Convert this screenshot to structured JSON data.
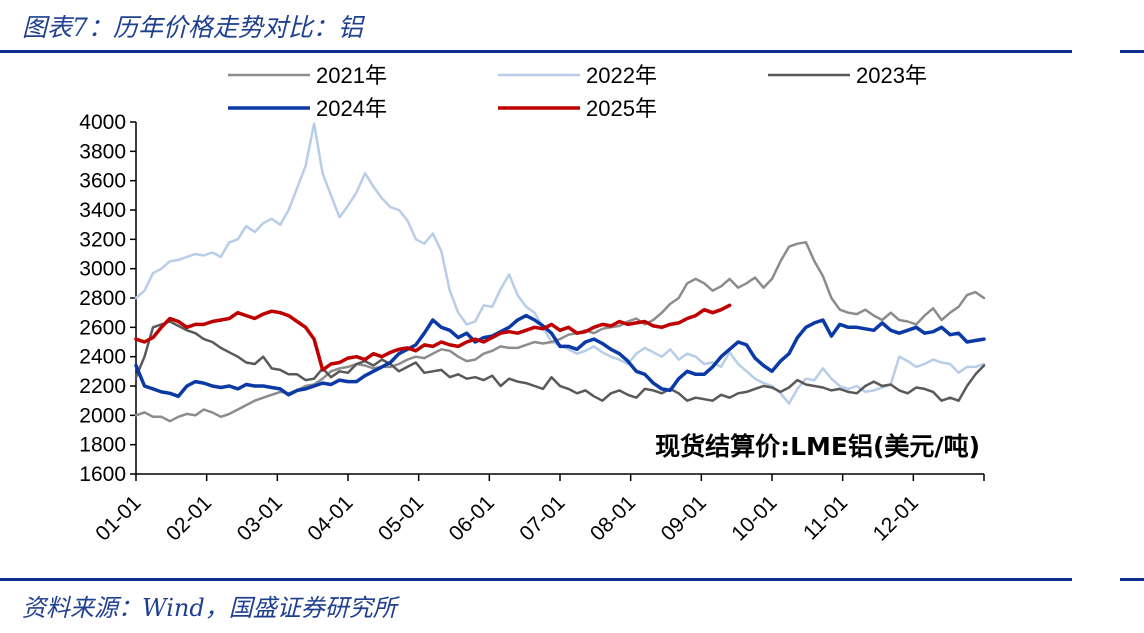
{
  "header": {
    "title": "图表7：历年价格走势对比：铝"
  },
  "footer": {
    "source": "资料来源：Wind，国盛证券研究所"
  },
  "colors": {
    "rule": "#0d2f8c",
    "text_blue": "#1f3f8f"
  },
  "chart_data": {
    "type": "line",
    "title": "图表7：历年价格走势对比：铝",
    "annotation": "现货结算价:LME铝(美元/吨)",
    "xlabel": "",
    "ylabel": "",
    "ylim": [
      1600,
      4000
    ],
    "yticks": [
      1600,
      1800,
      2000,
      2200,
      2400,
      2600,
      2800,
      3000,
      3200,
      3400,
      3600,
      3800,
      4000
    ],
    "x_ticks": [
      "01-01",
      "02-01",
      "03-01",
      "04-01",
      "05-01",
      "06-01",
      "07-01",
      "08-01",
      "09-01",
      "10-01",
      "11-01",
      "12-01"
    ],
    "grid": false,
    "legend": "top",
    "series": [
      {
        "name": "2021年",
        "color": "#8c8c8c",
        "width": 2.5,
        "values": [
          2000,
          2020,
          1990,
          1990,
          1960,
          1990,
          2010,
          2000,
          2040,
          2020,
          1990,
          2010,
          2040,
          2070,
          2100,
          2120,
          2140,
          2160,
          2150,
          2170,
          2200,
          2210,
          2250,
          2300,
          2320,
          2330,
          2350,
          2340,
          2320,
          2330,
          2330,
          2350,
          2380,
          2400,
          2390,
          2420,
          2450,
          2440,
          2400,
          2370,
          2380,
          2420,
          2440,
          2470,
          2460,
          2460,
          2480,
          2500,
          2490,
          2500,
          2520,
          2550,
          2560,
          2580,
          2560,
          2590,
          2600,
          2610,
          2640,
          2660,
          2620,
          2650,
          2700,
          2760,
          2800,
          2900,
          2930,
          2900,
          2850,
          2880,
          2930,
          2870,
          2900,
          2940,
          2870,
          2930,
          3050,
          3150,
          3170,
          3180,
          3050,
          2950,
          2800,
          2720,
          2700,
          2690,
          2720,
          2680,
          2650,
          2700,
          2650,
          2640,
          2620,
          2680,
          2730,
          2650,
          2700,
          2740,
          2820,
          2840,
          2800
        ]
      },
      {
        "name": "2022年",
        "color": "#b7cde8",
        "width": 2.5,
        "values": [
          2800,
          2850,
          2970,
          3000,
          3050,
          3060,
          3080,
          3100,
          3090,
          3110,
          3080,
          3180,
          3200,
          3290,
          3250,
          3310,
          3340,
          3300,
          3400,
          3550,
          3700,
          3990,
          3650,
          3500,
          3350,
          3430,
          3520,
          3650,
          3560,
          3480,
          3420,
          3400,
          3330,
          3200,
          3170,
          3240,
          3120,
          2850,
          2700,
          2620,
          2640,
          2750,
          2740,
          2860,
          2960,
          2820,
          2740,
          2700,
          2600,
          2500,
          2480,
          2450,
          2420,
          2440,
          2470,
          2430,
          2400,
          2380,
          2350,
          2420,
          2460,
          2430,
          2400,
          2450,
          2380,
          2420,
          2400,
          2350,
          2360,
          2330,
          2430,
          2350,
          2300,
          2250,
          2220,
          2200,
          2150,
          2080,
          2180,
          2250,
          2240,
          2320,
          2250,
          2200,
          2180,
          2200,
          2160,
          2170,
          2190,
          2210,
          2400,
          2370,
          2330,
          2350,
          2380,
          2360,
          2350,
          2290,
          2330,
          2330,
          2350
        ]
      },
      {
        "name": "2023年",
        "color": "#595959",
        "width": 2.5,
        "values": [
          2260,
          2400,
          2600,
          2620,
          2640,
          2610,
          2580,
          2560,
          2520,
          2500,
          2460,
          2430,
          2400,
          2360,
          2350,
          2400,
          2320,
          2310,
          2280,
          2280,
          2240,
          2250,
          2320,
          2260,
          2300,
          2290,
          2350,
          2370,
          2340,
          2380,
          2350,
          2300,
          2330,
          2360,
          2290,
          2300,
          2310,
          2260,
          2280,
          2250,
          2260,
          2240,
          2270,
          2200,
          2250,
          2230,
          2220,
          2200,
          2180,
          2260,
          2200,
          2180,
          2150,
          2170,
          2130,
          2100,
          2150,
          2170,
          2140,
          2120,
          2180,
          2170,
          2150,
          2180,
          2150,
          2100,
          2120,
          2110,
          2100,
          2140,
          2120,
          2150,
          2160,
          2180,
          2200,
          2190,
          2160,
          2190,
          2240,
          2210,
          2200,
          2190,
          2170,
          2180,
          2160,
          2150,
          2200,
          2230,
          2200,
          2210,
          2170,
          2150,
          2190,
          2180,
          2160,
          2100,
          2120,
          2100,
          2200,
          2280,
          2340
        ]
      },
      {
        "name": "2024年",
        "color": "#0b3aa6",
        "width": 3.5,
        "values": [
          2340,
          2200,
          2180,
          2160,
          2150,
          2130,
          2200,
          2230,
          2220,
          2200,
          2190,
          2200,
          2180,
          2210,
          2200,
          2200,
          2190,
          2180,
          2140,
          2170,
          2180,
          2200,
          2220,
          2210,
          2240,
          2230,
          2230,
          2270,
          2300,
          2330,
          2360,
          2420,
          2450,
          2480,
          2560,
          2650,
          2600,
          2580,
          2530,
          2560,
          2500,
          2530,
          2540,
          2570,
          2600,
          2650,
          2680,
          2650,
          2610,
          2560,
          2470,
          2470,
          2450,
          2500,
          2520,
          2490,
          2450,
          2420,
          2370,
          2300,
          2280,
          2220,
          2180,
          2170,
          2250,
          2300,
          2280,
          2280,
          2330,
          2400,
          2450,
          2500,
          2480,
          2390,
          2340,
          2300,
          2370,
          2420,
          2530,
          2600,
          2630,
          2650,
          2540,
          2620,
          2600,
          2600,
          2590,
          2580,
          2630,
          2580,
          2560,
          2580,
          2600,
          2560,
          2570,
          2600,
          2550,
          2560,
          2500,
          2510,
          2520
        ]
      },
      {
        "name": "2025年",
        "color": "#c00000",
        "width": 3.5,
        "values": [
          2520,
          2500,
          2530,
          2600,
          2660,
          2640,
          2600,
          2620,
          2620,
          2640,
          2650,
          2660,
          2700,
          2680,
          2660,
          2690,
          2710,
          2700,
          2680,
          2640,
          2600,
          2520,
          2310,
          2350,
          2360,
          2390,
          2400,
          2380,
          2420,
          2400,
          2430,
          2450,
          2460,
          2440,
          2480,
          2470,
          2500,
          2480,
          2470,
          2500,
          2520,
          2500,
          2530,
          2560,
          2570,
          2560,
          2580,
          2600,
          2590,
          2620,
          2580,
          2600,
          2560,
          2570,
          2600,
          2620,
          2610,
          2640,
          2620,
          2630,
          2640,
          2610,
          2600,
          2620,
          2630,
          2660,
          2680,
          2720,
          2700,
          2720,
          2750
        ]
      }
    ]
  }
}
